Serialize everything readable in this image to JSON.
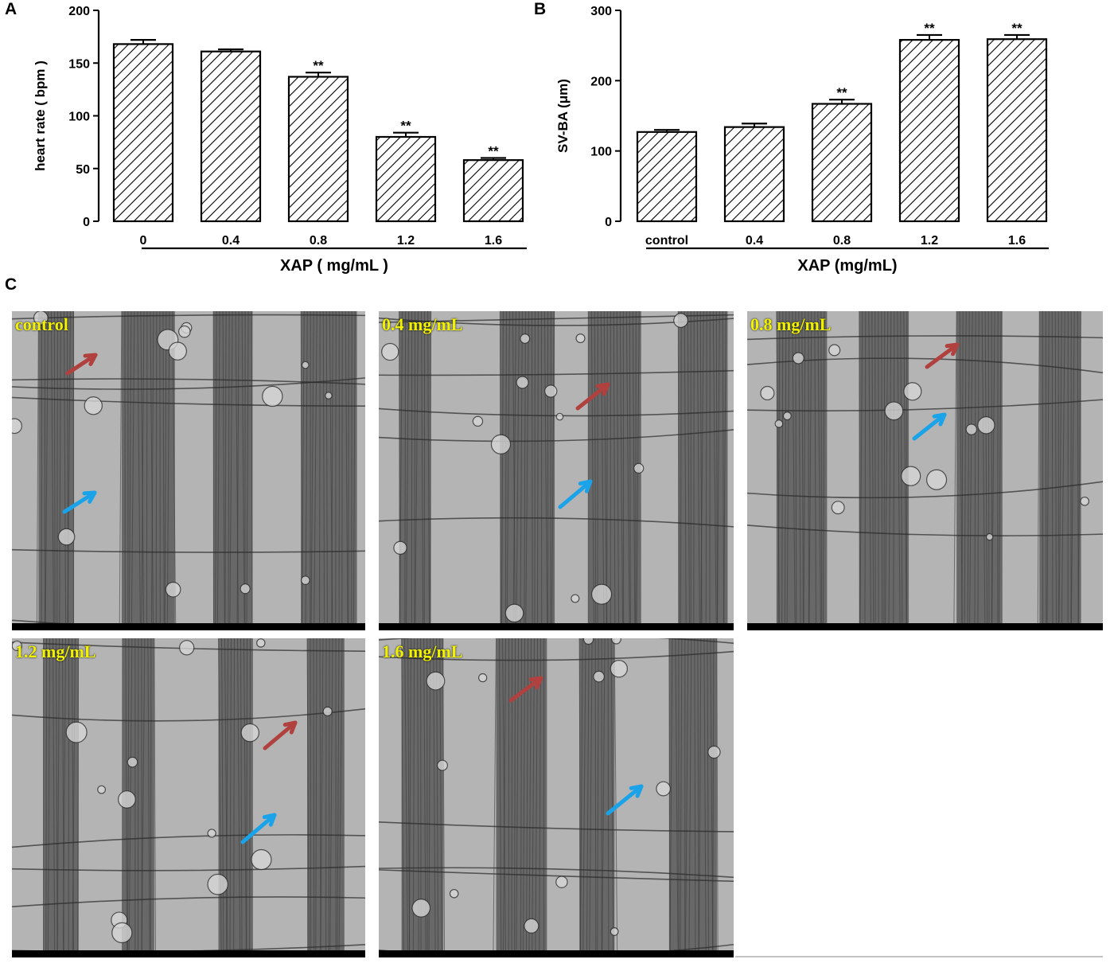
{
  "panels": {
    "a_letter": "A",
    "b_letter": "B",
    "c_letter": "C"
  },
  "colors": {
    "bar_stroke": "#000000",
    "hatch": "#000000",
    "tissue_bg": "#8a8a8a",
    "label_yellow": "#f2f200",
    "arrow_red": "#b0413e",
    "arrow_blue": "#1aa3e8"
  },
  "chart_data": [
    {
      "type": "bar",
      "title": "",
      "xlabel": "XAP ( mg/mL )",
      "ylabel": "heart rate ( bpm )",
      "categories": [
        "0",
        "0.4",
        "0.8",
        "1.2",
        "1.6"
      ],
      "values": [
        168,
        161,
        137,
        80,
        58
      ],
      "errors": [
        4,
        2,
        4,
        4,
        2
      ],
      "significance": [
        "",
        "",
        "**",
        "**",
        "**"
      ],
      "ylim": [
        0,
        200
      ],
      "yticks": [
        0,
        50,
        100,
        150,
        200
      ],
      "fill": "diagonal-hatch",
      "grid": false
    },
    {
      "type": "bar",
      "title": "",
      "xlabel": "XAP (mg/mL)",
      "ylabel": "SV-BA (μm)",
      "categories": [
        "control",
        "0.4",
        "0.8",
        "1.2",
        "1.6"
      ],
      "values": [
        127,
        134,
        167,
        258,
        259
      ],
      "errors": [
        3,
        5,
        6,
        7,
        6
      ],
      "significance": [
        "",
        "",
        "**",
        "**",
        "**"
      ],
      "ylim": [
        0,
        300
      ],
      "yticks": [
        0,
        100,
        200,
        300
      ],
      "fill": "diagonal-hatch",
      "grid": false
    }
  ],
  "micrographs": [
    {
      "label": "control",
      "arrows": [
        "red-arrow",
        "blue-arrow"
      ]
    },
    {
      "label": "0.4 mg/mL",
      "arrows": [
        "red-arrow",
        "blue-arrow"
      ]
    },
    {
      "label": "0.8 mg/mL",
      "arrows": [
        "red-arrow",
        "blue-arrow"
      ]
    },
    {
      "label": "1.2 mg/mL",
      "arrows": [
        "red-arrow",
        "blue-arrow"
      ]
    },
    {
      "label": "1.6 mg/mL",
      "arrows": [
        "red-arrow",
        "blue-arrow"
      ]
    }
  ]
}
